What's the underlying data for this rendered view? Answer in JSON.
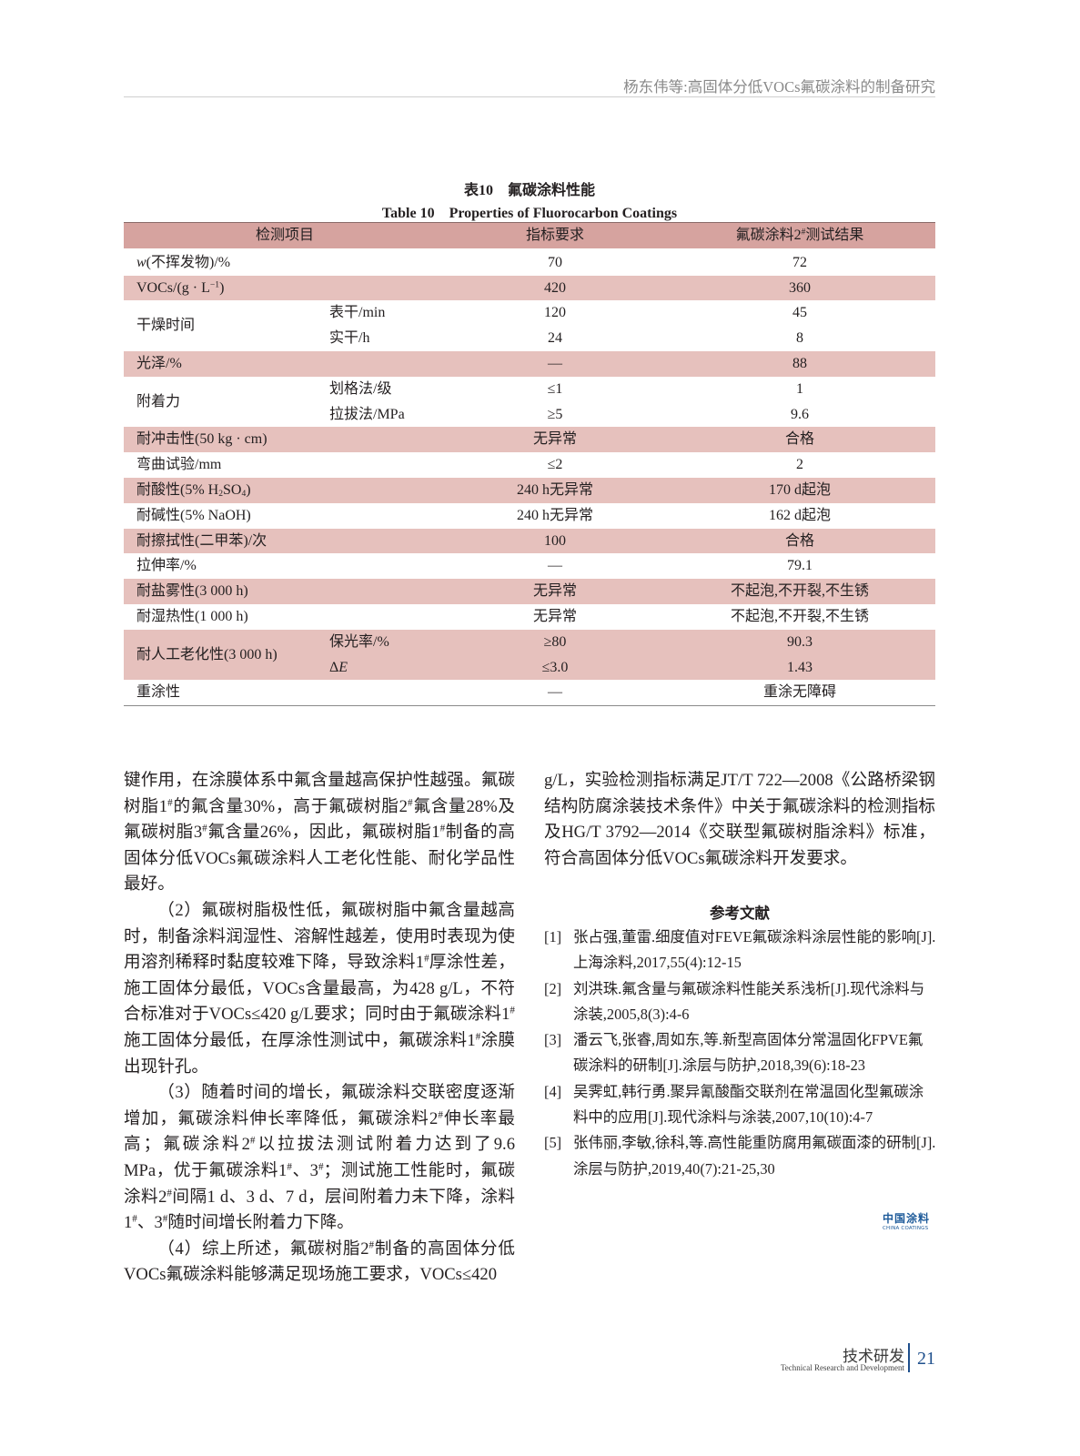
{
  "header": {
    "running_title": "杨东伟等:高固体分低VOCs氟碳涂料的制备研究"
  },
  "table": {
    "caption_cn": "表10　氟碳涂料性能",
    "caption_en": "Table 10　Properties of Fluorocarbon Coatings",
    "columns": [
      "检测项目",
      "指标要求",
      [
        "氟碳涂料2",
        {
          "sup": "#"
        },
        "测试结果"
      ]
    ],
    "colors": {
      "header": "#d6a39f",
      "shaded_row": "#e6c1bd"
    },
    "rows": [
      {
        "item": [
          {
            "i": "w"
          },
          "(不挥发物)/%"
        ],
        "subs": [
          {
            "sub": "",
            "req": "70",
            "result": "72"
          }
        ],
        "shaded": false
      },
      {
        "item": [
          "VOCs/(g · L",
          {
            "sup": "−1"
          },
          ")"
        ],
        "subs": [
          {
            "sub": "",
            "req": "420",
            "result": "360"
          }
        ],
        "shaded": true
      },
      {
        "item": "干燥时间",
        "subs": [
          {
            "sub": "表干/min",
            "req": "120",
            "result": "45"
          },
          {
            "sub": "实干/h",
            "req": "24",
            "result": "8"
          }
        ],
        "shaded": false
      },
      {
        "item": "光泽/%",
        "subs": [
          {
            "sub": "",
            "req": "—",
            "result": "88"
          }
        ],
        "shaded": true
      },
      {
        "item": "附着力",
        "subs": [
          {
            "sub": "划格法/级",
            "req": "≤1",
            "result": "1"
          },
          {
            "sub": "拉拔法/MPa",
            "req": "≥5",
            "result": "9.6"
          }
        ],
        "shaded": false
      },
      {
        "item": "耐冲击性(50 kg · cm)",
        "subs": [
          {
            "sub": "",
            "req": "无异常",
            "result": "合格"
          }
        ],
        "shaded": true
      },
      {
        "item": "弯曲试验/mm",
        "subs": [
          {
            "sub": "",
            "req": "≤2",
            "result": "2"
          }
        ],
        "shaded": false
      },
      {
        "item": [
          "耐酸性(5% H",
          {
            "sub": "2"
          },
          "SO",
          {
            "sub": "4"
          },
          ")"
        ],
        "subs": [
          {
            "sub": "",
            "req": "240 h无异常",
            "result": "170 d起泡"
          }
        ],
        "shaded": true
      },
      {
        "item": "耐碱性(5% NaOH)",
        "subs": [
          {
            "sub": "",
            "req": "240 h无异常",
            "result": "162 d起泡"
          }
        ],
        "shaded": false
      },
      {
        "item": "耐擦拭性(二甲苯)/次",
        "subs": [
          {
            "sub": "",
            "req": "100",
            "result": "合格"
          }
        ],
        "shaded": true
      },
      {
        "item": "拉伸率/%",
        "subs": [
          {
            "sub": "",
            "req": "—",
            "result": "79.1"
          }
        ],
        "shaded": false
      },
      {
        "item": "耐盐雾性(3 000 h)",
        "subs": [
          {
            "sub": "",
            "req": "无异常",
            "result": "不起泡,不开裂,不生锈"
          }
        ],
        "shaded": true
      },
      {
        "item": "耐湿热性(1 000 h)",
        "subs": [
          {
            "sub": "",
            "req": "无异常",
            "result": "不起泡,不开裂,不生锈"
          }
        ],
        "shaded": false
      },
      {
        "item": "耐人工老化性(3 000 h)",
        "subs": [
          {
            "sub": "保光率/%",
            "req": "≥80",
            "result": "90.3"
          },
          {
            "sub": [
              "Δ",
              {
                "i": "E"
              }
            ],
            "req": "≤3.0",
            "result": "1.43"
          }
        ],
        "shaded": true
      },
      {
        "item": "重涂性",
        "subs": [
          {
            "sub": "",
            "req": "—",
            "result": "重涂无障碍"
          }
        ],
        "shaded": false
      }
    ]
  },
  "body": {
    "left": [
      {
        "indent": false,
        "text": [
          "键作用，在涂膜体系中氟含量越高保护性越强。氟碳树脂1",
          {
            "sup": "#"
          },
          "的氟含量30%，高于氟碳树脂2",
          {
            "sup": "#"
          },
          "氟含量28%及氟碳树脂3",
          {
            "sup": "#"
          },
          "氟含量26%，因此，氟碳树脂1",
          {
            "sup": "#"
          },
          "制备的高固体分低VOCs氟碳涂料人工老化性能、耐化学品性最好。"
        ]
      },
      {
        "indent": true,
        "text": [
          "（2）氟碳树脂极性低，氟碳树脂中氟含量越高时，制备涂料润湿性、溶解性越差，使用时表现为使用溶剂稀释时黏度较难下降，导致涂料1",
          {
            "sup": "#"
          },
          "厚涂性差，施工固体分最低，VOCs含量最高，为428 g/L，不符合标准对于VOCs≤420 g/L要求；同时由于氟碳涂料1",
          {
            "sup": "#"
          },
          "施工固体分最低，在厚涂性测试中，氟碳涂料1",
          {
            "sup": "#"
          },
          "涂膜出现针孔。"
        ]
      },
      {
        "indent": true,
        "text": [
          "（3）随着时间的增长，氟碳涂料交联密度逐渐增加，氟碳涂料伸长率降低，氟碳涂料2",
          {
            "sup": "#"
          },
          "伸长率最高；氟碳涂料2",
          {
            "sup": "#"
          },
          "以拉拔法测试附着力达到了9.6 MPa，优于氟碳涂料1",
          {
            "sup": "#"
          },
          "、3",
          {
            "sup": "#"
          },
          "；测试施工性能时，氟碳涂料2",
          {
            "sup": "#"
          },
          "间隔1 d、3 d、7 d，层间附着力未下降，涂料1",
          {
            "sup": "#"
          },
          "、3",
          {
            "sup": "#"
          },
          "随时间增长附着力下降。"
        ]
      },
      {
        "indent": true,
        "text": [
          "（4）综上所述，氟碳树脂2",
          {
            "sup": "#"
          },
          "制备的高固体分低VOCs氟碳涂料能够满足现场施工要求，VOCs≤420"
        ]
      }
    ],
    "right": [
      {
        "indent": false,
        "text": "g/L，实验检测指标满足JT/T 722—2008《公路桥梁钢结构防腐涂装技术条件》中关于氟碳涂料的检测指标及HG/T 3792—2014《交联型氟碳树脂涂料》标准，符合高固体分低VOCs氟碳涂料开发要求。"
      }
    ]
  },
  "references": {
    "heading": "参考文献",
    "items": [
      {
        "num": "[1]",
        "text": "张占强,董雷.细度值对FEVE氟碳涂料涂层性能的影响[J].上海涂料,2017,55(4):12-15"
      },
      {
        "num": "[2]",
        "text": "刘洪珠.氟含量与氟碳涂料性能关系浅析[J].现代涂料与涂装,2005,8(3):4-6"
      },
      {
        "num": "[3]",
        "text": "潘云飞,张睿,周如东,等.新型高固体分常温固化FPVE氟碳涂料的研制[J].涂层与防护,2018,39(6):18-23"
      },
      {
        "num": "[4]",
        "text": "吴霁虹,韩行勇.聚异氰酸酯交联剂在常温固化型氟碳涂料中的应用[J].现代涂料与涂装,2007,10(10):4-7"
      },
      {
        "num": "[5]",
        "text": "张伟丽,李敏,徐科,等.高性能重防腐用氟碳面漆的研制[J].涂层与防护,2019,40(7):21-25,30"
      }
    ]
  },
  "logo": {
    "cn": "中国涂料",
    "en": "CHINA COATINGS",
    "color": "#1e5b9a"
  },
  "footer": {
    "section_cn": "技术研发",
    "section_en": "Technical Research and Development",
    "page": "21",
    "accent": "#1e4f8c"
  }
}
